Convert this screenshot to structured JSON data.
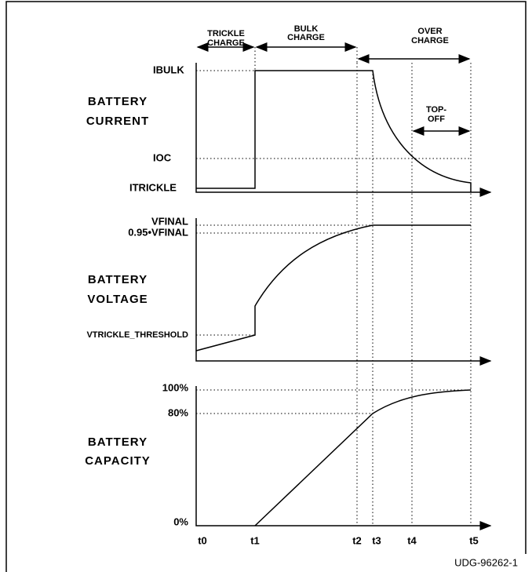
{
  "phases": {
    "trickle": [
      "TRICKLE",
      "CHARGE"
    ],
    "bulk": [
      "BULK",
      "CHARGE"
    ],
    "over": [
      "OVER",
      "CHARGE"
    ],
    "topoff": [
      "TOP-",
      "OFF"
    ]
  },
  "panels": [
    {
      "title": [
        "BATTERY",
        "CURRENT"
      ],
      "levels": [
        "IBULK",
        "IOC",
        "ITRICKLE"
      ]
    },
    {
      "title": [
        "BATTERY",
        "VOLTAGE"
      ],
      "levels": [
        "VFINAL",
        "0.95•VFINAL",
        "VTRICKLE_THRESHOLD"
      ]
    },
    {
      "title": [
        "BATTERY",
        "CAPACITY"
      ],
      "levels": [
        "100%",
        "80%",
        "0%"
      ]
    }
  ],
  "times": [
    "t0",
    "t1",
    "t2",
    "t3",
    "t4",
    "t5"
  ],
  "figure_id": "UDG-96262-1"
}
